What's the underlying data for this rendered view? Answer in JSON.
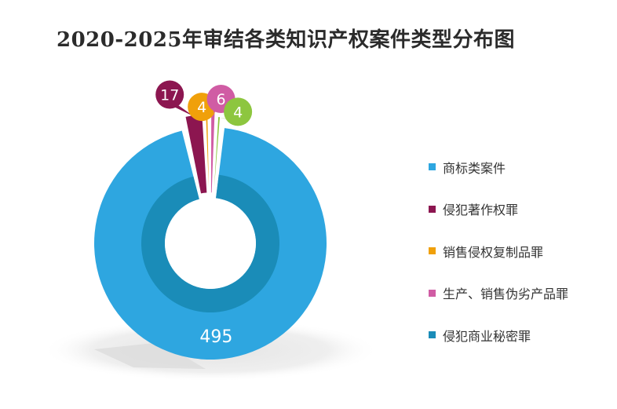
{
  "title": "2020-2025年审结各类知识产权案件类型分布图",
  "chart_data": {
    "type": "pie",
    "variant": "donut",
    "title": "2020-2025年审结各类知识产权案件类型分布图",
    "legend_position": "right",
    "series": [
      {
        "name": "商标类案件",
        "value": 495,
        "label": "495",
        "color": "#2ea6e0"
      },
      {
        "name": "侵犯著作权罪",
        "value": 17,
        "label": "17",
        "color": "#8c1650"
      },
      {
        "name": "销售侵权复制品罪",
        "value": 4,
        "label": "4",
        "color": "#f0a00a"
      },
      {
        "name": "生产、销售伪劣产品罪",
        "value": 6,
        "label": "6",
        "color": "#d05ca4"
      },
      {
        "name": "侵犯商业秘密罪",
        "value": null,
        "label": "",
        "color": "#1a8cb8"
      },
      {
        "name": "",
        "value": 4,
        "label": "4",
        "color": "#8dc63f"
      }
    ]
  }
}
